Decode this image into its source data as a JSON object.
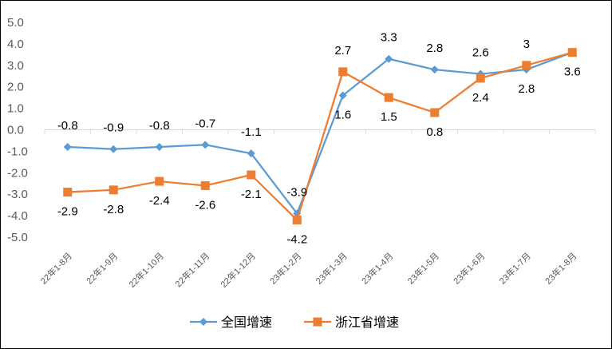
{
  "chart_data": {
    "type": "line",
    "title": "",
    "xlabel": "",
    "ylabel": "",
    "categories": [
      "22年1-8月",
      "22年1-9月",
      "22年1-10月",
      "22年1-11月",
      "22年1-12月",
      "23年1-2月",
      "23年1-3月",
      "23年1-4月",
      "23年1-5月",
      "23年1-6月",
      "23年1-7月",
      "23年1-8月"
    ],
    "ylim": [
      -5.0,
      5.0
    ],
    "yticks": [
      "5.0",
      "4.0",
      "3.0",
      "2.0",
      "1.0",
      "0.0",
      "-1.0",
      "-2.0",
      "-3.0",
      "-4.0",
      "-5.0"
    ],
    "grid": false,
    "legend_position": "bottom",
    "series": [
      {
        "name": "全国增速",
        "color": "#5B9BD5",
        "marker": "diamond",
        "values": [
          -0.8,
          -0.9,
          -0.8,
          -0.7,
          -1.1,
          -3.9,
          1.6,
          3.3,
          2.8,
          2.6,
          2.8,
          3.6
        ],
        "labels": [
          "-0.8",
          "-0.9",
          "-0.8",
          "-0.7",
          "-1.1",
          "-3.9",
          "1.6",
          "3.3",
          "2.8",
          "2.6",
          "2.8",
          ""
        ]
      },
      {
        "name": "浙江省增速",
        "color": "#ED7D31",
        "marker": "square",
        "values": [
          -2.9,
          -2.8,
          -2.4,
          -2.6,
          -2.1,
          -4.2,
          2.7,
          1.5,
          0.8,
          2.4,
          3.0,
          3.6
        ],
        "labels": [
          "-2.9",
          "-2.8",
          "-2.4",
          "-2.6",
          "-2.1",
          "-4.2",
          "2.7",
          "1.5",
          "0.8",
          "2.4",
          "3",
          "3.6"
        ]
      }
    ]
  }
}
